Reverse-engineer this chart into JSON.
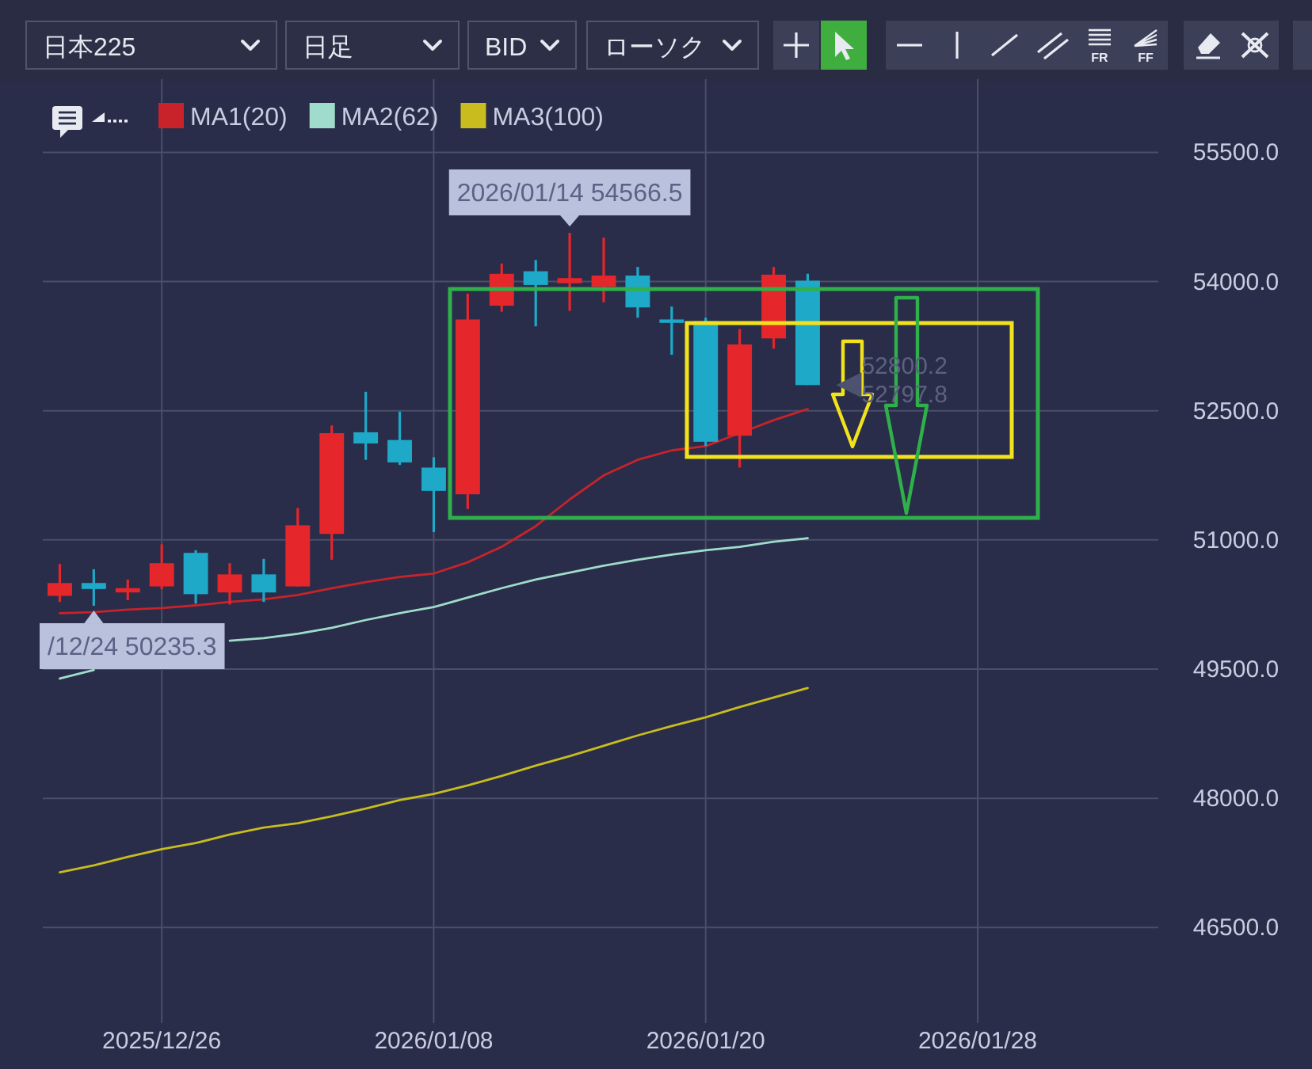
{
  "chart_data": {
    "type": "candlestick",
    "title": "日本225",
    "categories": [
      null,
      null,
      null,
      "2025/12/26",
      null,
      null,
      null,
      null,
      null,
      null,
      null,
      "2026/01/08",
      null,
      null,
      null,
      null,
      null,
      null,
      null,
      "2026/01/20",
      null,
      null,
      null,
      null,
      null,
      null,
      null,
      "2026/01/28",
      null,
      null,
      null,
      null,
      null
    ],
    "ohlc": [
      [
        50350,
        50720,
        50280,
        50500
      ],
      [
        50500,
        50660,
        50235.3,
        50430
      ],
      [
        50390,
        50540,
        50300,
        50440
      ],
      [
        50460,
        50950,
        50430,
        50730
      ],
      [
        50850,
        50880,
        50260,
        50370
      ],
      [
        50390,
        50730,
        50250,
        50600
      ],
      [
        50600,
        50780,
        50280,
        50390
      ],
      [
        50460,
        51370,
        50460,
        51170
      ],
      [
        51070,
        52330,
        50770,
        52240
      ],
      [
        52250,
        52720,
        51930,
        52120
      ],
      [
        52160,
        52490,
        51870,
        51900
      ],
      [
        51840,
        51960,
        51090,
        51570
      ],
      [
        51530,
        53860,
        51360,
        53560
      ],
      [
        53720,
        54210,
        53650,
        54090
      ],
      [
        54120,
        54250,
        53480,
        53960
      ],
      [
        53980,
        54566.5,
        53660,
        54040
      ],
      [
        53940,
        54510,
        53760,
        54070
      ],
      [
        54070,
        54170,
        53580,
        53700
      ],
      [
        53560,
        53710,
        53150,
        53520
      ],
      [
        53540,
        53580,
        52090,
        52140
      ],
      [
        52210,
        53450,
        51840,
        53270
      ],
      [
        53340,
        54170,
        53220,
        54080
      ],
      [
        54010,
        54090,
        52797.8,
        52797.8
      ],
      null,
      null,
      null,
      null,
      null,
      null,
      null,
      null,
      null,
      null
    ],
    "colors": [
      "#e5262b",
      "#1ea9c9",
      "#e5262b",
      "#e5262b",
      "#1ea9c9",
      "#e5262b",
      "#1ea9c9",
      "#e5262b",
      "#e5262b",
      "#1ea9c9",
      "#1ea9c9",
      "#1ea9c9",
      "#e5262b",
      "#e5262b",
      "#1ea9c9",
      "#e5262b",
      "#e5262b",
      "#1ea9c9",
      "#1ea9c9",
      "#1ea9c9",
      "#e5262b",
      "#e5262b",
      "#1ea9c9",
      null,
      null,
      null,
      null,
      null,
      null,
      null,
      null,
      null,
      null
    ],
    "series": [
      {
        "type": "line",
        "name": "MA1(20)",
        "color": "#c8232a",
        "values": [
          50150,
          50160,
          50190,
          50210,
          50240,
          50280,
          50310,
          50360,
          50440,
          50510,
          50570,
          50610,
          50740,
          50920,
          51160,
          51470,
          51750,
          51930,
          52040,
          52090,
          52240,
          52390,
          52520,
          null,
          null,
          null,
          null,
          null,
          null,
          null,
          null,
          null,
          null
        ]
      },
      {
        "type": "line",
        "name": "MA2(62)",
        "color": "#a0dccb",
        "values": [
          49390,
          49490,
          null,
          null,
          null,
          49830,
          49860,
          49910,
          49980,
          50070,
          50150,
          50220,
          50330,
          50440,
          50540,
          50620,
          50700,
          50770,
          50830,
          50880,
          50920,
          50980,
          51020,
          null,
          null,
          null,
          null,
          null,
          null,
          null,
          null,
          null,
          null
        ]
      },
      {
        "type": "line",
        "name": "MA3(100)",
        "color": "#c8bc1e",
        "values": [
          47140,
          47220,
          47320,
          47410,
          47480,
          47580,
          47660,
          47710,
          47790,
          47880,
          47980,
          48050,
          48150,
          48260,
          48380,
          48490,
          48610,
          48730,
          48840,
          48940,
          49060,
          49170,
          49280,
          null,
          null,
          null,
          null,
          null,
          null,
          null,
          null,
          null,
          null
        ]
      }
    ],
    "ylim": [
      45390,
      56350
    ],
    "yticks": [
      {
        "value": 46500,
        "label": "46500.0"
      },
      {
        "value": 48000,
        "label": "48000.0"
      },
      {
        "value": 49500,
        "label": "49500.0"
      },
      {
        "value": 51000,
        "label": "51000.0"
      },
      {
        "value": 52500,
        "label": "52500.0"
      },
      {
        "value": 54000,
        "label": "54000.0"
      },
      {
        "value": 55500,
        "label": "55500.0"
      }
    ],
    "grid": true,
    "legend": "top left",
    "annotations": [
      {
        "text": "2026/01/14 54566.5",
        "y": 54566.5
      },
      {
        "text": "/12/24 50235.3",
        "y": 50235.3
      },
      "52800.2",
      "52797.8",
      "日足",
      "BID",
      "ローソク",
      "FR",
      "FF"
    ]
  }
}
